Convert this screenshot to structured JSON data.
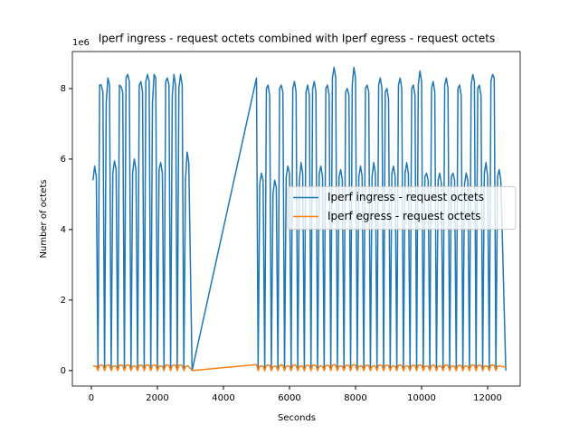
{
  "chart_data": {
    "type": "line",
    "title": "Iperf ingress - request octets combined with Iperf egress - request octets",
    "y_offset_text": "1e6",
    "xlabel": "Seconds",
    "ylabel": "Number of octets",
    "x": [
      50,
      100,
      150,
      200,
      250,
      300,
      350,
      400,
      450,
      500,
      550,
      600,
      650,
      700,
      750,
      800,
      850,
      900,
      950,
      1000,
      1050,
      1100,
      1150,
      1200,
      1250,
      1300,
      1350,
      1400,
      1450,
      1500,
      1550,
      1600,
      1650,
      1700,
      1750,
      1800,
      1850,
      1900,
      1950,
      2000,
      2050,
      2100,
      2150,
      2200,
      2250,
      2300,
      2350,
      2400,
      2450,
      2500,
      2550,
      2600,
      2650,
      2700,
      2750,
      2800,
      2850,
      2900,
      2950,
      3050,
      5000,
      5050,
      5100,
      5150,
      5200,
      5250,
      5300,
      5350,
      5400,
      5450,
      5500,
      5550,
      5600,
      5650,
      5700,
      5750,
      5800,
      5850,
      5900,
      5950,
      6000,
      6050,
      6100,
      6150,
      6200,
      6250,
      6300,
      6350,
      6400,
      6450,
      6500,
      6550,
      6600,
      6650,
      6700,
      6750,
      6800,
      6850,
      6900,
      6950,
      7000,
      7050,
      7100,
      7150,
      7200,
      7250,
      7300,
      7350,
      7400,
      7450,
      7500,
      7550,
      7600,
      7650,
      7700,
      7750,
      7800,
      7850,
      7900,
      7950,
      8000,
      8050,
      8100,
      8150,
      8200,
      8250,
      8300,
      8350,
      8400,
      8450,
      8500,
      8550,
      8600,
      8650,
      8700,
      8750,
      8800,
      8850,
      8900,
      8950,
      9000,
      9050,
      9100,
      9150,
      9200,
      9250,
      9300,
      9350,
      9400,
      9450,
      9500,
      9550,
      9600,
      9650,
      9700,
      9750,
      9800,
      9850,
      9900,
      9950,
      10000,
      10050,
      10100,
      10150,
      10200,
      10250,
      10300,
      10350,
      10400,
      10450,
      10500,
      10550,
      10600,
      10650,
      10700,
      10750,
      10800,
      10850,
      10900,
      10950,
      11000,
      11050,
      11100,
      11150,
      11200,
      11250,
      11300,
      11350,
      11400,
      11450,
      11500,
      11550,
      11600,
      11650,
      11700,
      11750,
      11800,
      11850,
      11900,
      11950,
      12000,
      12050,
      12100,
      12150,
      12200,
      12250,
      12300,
      12350,
      12400,
      12550
    ],
    "series": [
      {
        "name": "Iperf ingress - request octets",
        "color": "#1f77b4",
        "values": [
          5.4,
          5.8,
          5.5,
          0,
          8.1,
          8.1,
          7.9,
          0,
          7.6,
          8.3,
          8.1,
          0,
          5.6,
          5.95,
          5.7,
          0,
          8.1,
          8.05,
          7.9,
          0,
          8.3,
          8.4,
          8.2,
          0,
          5.6,
          6.0,
          5.7,
          0,
          8.1,
          8.2,
          7.9,
          0,
          8.2,
          8.4,
          8.2,
          0,
          7.6,
          8.4,
          8.3,
          0,
          5.7,
          5.9,
          5.6,
          0,
          8.2,
          8.3,
          8.1,
          0,
          7.8,
          8.4,
          8.1,
          0,
          8.0,
          8.4,
          8.1,
          0,
          5.4,
          6.2,
          5.9,
          0,
          8.3,
          0,
          5.3,
          5.6,
          5.4,
          0,
          8.0,
          8.1,
          7.8,
          0,
          5.0,
          5.4,
          5.2,
          0,
          8.0,
          8.1,
          7.9,
          0,
          5.5,
          5.8,
          5.6,
          0,
          8.0,
          8.2,
          7.9,
          0,
          5.4,
          5.9,
          5.6,
          0,
          7.9,
          8.1,
          7.8,
          0,
          8.0,
          8.2,
          7.9,
          0,
          5.6,
          5.8,
          5.5,
          0,
          8.0,
          8.1,
          7.8,
          0,
          8.3,
          8.6,
          8.3,
          0,
          5.5,
          5.7,
          5.4,
          0,
          7.9,
          8.0,
          7.8,
          0,
          8.1,
          8.6,
          8.3,
          0,
          5.5,
          5.8,
          5.5,
          0,
          8.0,
          8.1,
          7.9,
          0,
          5.5,
          5.9,
          5.6,
          0,
          8.1,
          8.3,
          8.0,
          0,
          7.9,
          8.0,
          7.7,
          0,
          5.6,
          5.8,
          5.5,
          0,
          8.1,
          8.3,
          8.0,
          0,
          5.6,
          5.9,
          5.6,
          0,
          8.0,
          8.1,
          7.8,
          0,
          8.1,
          8.5,
          8.2,
          0,
          5.5,
          5.6,
          5.4,
          0,
          8.0,
          8.2,
          7.9,
          0,
          5.4,
          5.6,
          5.3,
          0,
          8.1,
          8.3,
          8.0,
          0,
          5.5,
          5.6,
          5.4,
          0,
          8.0,
          8.1,
          7.8,
          0,
          5.3,
          5.6,
          5.4,
          0,
          8.1,
          8.4,
          8.2,
          0,
          8.0,
          8.1,
          7.8,
          0,
          5.6,
          5.9,
          5.5,
          0,
          8.2,
          8.4,
          8.3,
          0,
          5.5,
          5.7,
          5.4,
          0
        ]
      },
      {
        "name": "Iperf egress - request octets",
        "color": "#ff7f0e",
        "values": [
          0.12,
          0.13,
          0.12,
          0,
          0.15,
          0.16,
          0.14,
          0,
          0.14,
          0.16,
          0.15,
          0,
          0.12,
          0.13,
          0.12,
          0,
          0.15,
          0.16,
          0.14,
          0,
          0.15,
          0.16,
          0.15,
          0,
          0.12,
          0.13,
          0.12,
          0,
          0.15,
          0.16,
          0.14,
          0,
          0.15,
          0.16,
          0.15,
          0,
          0.14,
          0.16,
          0.15,
          0,
          0.12,
          0.13,
          0.12,
          0,
          0.15,
          0.16,
          0.14,
          0,
          0.14,
          0.16,
          0.15,
          0,
          0.15,
          0.16,
          0.14,
          0,
          0.12,
          0.13,
          0.12,
          0,
          0.17,
          0,
          0.12,
          0.13,
          0.12,
          0,
          0.14,
          0.16,
          0.15,
          0,
          0.11,
          0.12,
          0.12,
          0,
          0.14,
          0.16,
          0.15,
          0,
          0.12,
          0.13,
          0.12,
          0,
          0.15,
          0.16,
          0.14,
          0,
          0.12,
          0.13,
          0.12,
          0,
          0.14,
          0.15,
          0.14,
          0,
          0.15,
          0.16,
          0.14,
          0,
          0.12,
          0.13,
          0.12,
          0,
          0.14,
          0.15,
          0.14,
          0,
          0.15,
          0.17,
          0.15,
          0,
          0.12,
          0.13,
          0.12,
          0,
          0.14,
          0.15,
          0.14,
          0,
          0.15,
          0.17,
          0.15,
          0,
          0.12,
          0.13,
          0.12,
          0,
          0.14,
          0.15,
          0.14,
          0,
          0.12,
          0.13,
          0.12,
          0,
          0.15,
          0.16,
          0.14,
          0,
          0.14,
          0.15,
          0.14,
          0,
          0.12,
          0.13,
          0.12,
          0,
          0.15,
          0.16,
          0.14,
          0,
          0.12,
          0.13,
          0.12,
          0,
          0.14,
          0.15,
          0.14,
          0,
          0.15,
          0.16,
          0.15,
          0,
          0.12,
          0.13,
          0.12,
          0,
          0.14,
          0.16,
          0.14,
          0,
          0.12,
          0.13,
          0.12,
          0,
          0.15,
          0.16,
          0.14,
          0,
          0.12,
          0.13,
          0.12,
          0,
          0.14,
          0.15,
          0.14,
          0,
          0.12,
          0.13,
          0.12,
          0,
          0.15,
          0.16,
          0.15,
          0,
          0.14,
          0.15,
          0.14,
          0,
          0.12,
          0.13,
          0.12,
          0,
          0.15,
          0.16,
          0.15,
          0,
          0.12,
          0.13,
          0.12,
          0.1
        ]
      }
    ],
    "xlim": [
      -575,
      12986
    ],
    "xticks": [
      0,
      2000,
      4000,
      6000,
      8000,
      10000,
      12000
    ],
    "ylim": [
      -0.44,
      9.05
    ],
    "yticks": [
      0,
      2,
      4,
      6,
      8
    ],
    "legend": "center right",
    "grid": false
  }
}
